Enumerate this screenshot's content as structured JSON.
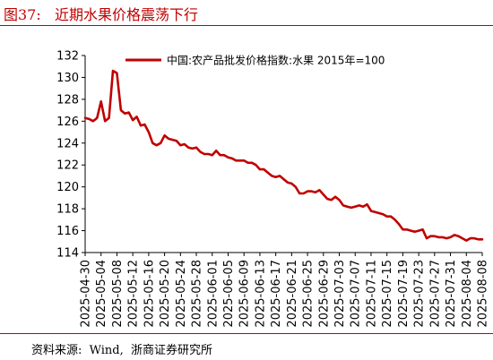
{
  "figure": {
    "title": "图37:   近期水果价格震荡下行",
    "source": "资料来源:  Wind,  浙商证券研究所"
  },
  "colors": {
    "accent": "#c00000",
    "series": "#c00000",
    "axis": "#000000"
  },
  "chart_data": {
    "type": "line",
    "title": "",
    "xlabel": "",
    "ylabel": "",
    "ylim": [
      114,
      132
    ],
    "yticks": [
      114,
      116,
      118,
      120,
      122,
      124,
      126,
      128,
      130,
      132
    ],
    "xlim": [
      "2025-04-30",
      "2025-08-08"
    ],
    "xtick_labels": [
      "2025-04-30",
      "2025-05-04",
      "2025-05-08",
      "2025-05-12",
      "2025-05-16",
      "2025-05-20",
      "2025-05-24",
      "2025-05-28",
      "2025-06-01",
      "2025-06-05",
      "2025-06-09",
      "2025-06-13",
      "2025-06-17",
      "2025-06-21",
      "2025-06-25",
      "2025-06-29",
      "2025-07-03",
      "2025-07-07",
      "2025-07-11",
      "2025-07-15",
      "2025-07-19",
      "2025-07-23",
      "2025-07-27",
      "2025-07-31",
      "2025-08-04",
      "2025-08-08"
    ],
    "grid": false,
    "legend": "top-right",
    "series": [
      {
        "name": "中国:农产品批发价格指数:水果 2015年=100",
        "x": [
          "2025-04-30",
          "2025-05-01",
          "2025-05-02",
          "2025-05-03",
          "2025-05-04",
          "2025-05-05",
          "2025-05-06",
          "2025-05-07",
          "2025-05-08",
          "2025-05-09",
          "2025-05-10",
          "2025-05-11",
          "2025-05-12",
          "2025-05-13",
          "2025-05-14",
          "2025-05-15",
          "2025-05-16",
          "2025-05-17",
          "2025-05-18",
          "2025-05-19",
          "2025-05-20",
          "2025-05-21",
          "2025-05-22",
          "2025-05-23",
          "2025-05-24",
          "2025-05-25",
          "2025-05-26",
          "2025-05-27",
          "2025-05-28",
          "2025-05-29",
          "2025-05-30",
          "2025-05-31",
          "2025-06-01",
          "2025-06-02",
          "2025-06-03",
          "2025-06-04",
          "2025-06-05",
          "2025-06-06",
          "2025-06-07",
          "2025-06-08",
          "2025-06-09",
          "2025-06-10",
          "2025-06-11",
          "2025-06-12",
          "2025-06-13",
          "2025-06-14",
          "2025-06-15",
          "2025-06-16",
          "2025-06-17",
          "2025-06-18",
          "2025-06-19",
          "2025-06-20",
          "2025-06-21",
          "2025-06-22",
          "2025-06-23",
          "2025-06-24",
          "2025-06-25",
          "2025-06-26",
          "2025-06-27",
          "2025-06-28",
          "2025-06-29",
          "2025-06-30",
          "2025-07-01",
          "2025-07-02",
          "2025-07-03",
          "2025-07-04",
          "2025-07-05",
          "2025-07-06",
          "2025-07-07",
          "2025-07-08",
          "2025-07-09",
          "2025-07-10",
          "2025-07-11",
          "2025-07-12",
          "2025-07-13",
          "2025-07-14",
          "2025-07-15",
          "2025-07-16",
          "2025-07-17",
          "2025-07-18",
          "2025-07-19",
          "2025-07-20",
          "2025-07-21",
          "2025-07-22",
          "2025-07-23",
          "2025-07-24",
          "2025-07-25",
          "2025-07-26",
          "2025-07-27",
          "2025-07-28",
          "2025-07-29",
          "2025-07-30",
          "2025-07-31",
          "2025-08-01",
          "2025-08-02",
          "2025-08-03",
          "2025-08-04",
          "2025-08-05",
          "2025-08-06",
          "2025-08-07",
          "2025-08-08"
        ],
        "values": [
          126.3,
          126.2,
          126.0,
          126.3,
          127.8,
          126.0,
          126.3,
          130.6,
          130.4,
          127.0,
          126.7,
          126.8,
          126.1,
          126.4,
          125.6,
          125.7,
          125.0,
          124.0,
          123.8,
          124.0,
          124.7,
          124.4,
          124.3,
          124.2,
          123.8,
          123.9,
          123.6,
          123.5,
          123.6,
          123.2,
          123.0,
          123.0,
          122.9,
          123.3,
          122.9,
          122.9,
          122.7,
          122.6,
          122.4,
          122.4,
          122.4,
          122.2,
          122.2,
          122.0,
          121.6,
          121.6,
          121.3,
          121.0,
          120.9,
          121.0,
          120.7,
          120.4,
          120.3,
          120.0,
          119.4,
          119.4,
          119.6,
          119.6,
          119.5,
          119.7,
          119.3,
          118.9,
          118.8,
          119.1,
          118.8,
          118.3,
          118.2,
          118.1,
          118.2,
          118.3,
          118.2,
          118.4,
          117.8,
          117.7,
          117.6,
          117.5,
          117.3,
          117.3,
          117.0,
          116.6,
          116.1,
          116.1,
          116.0,
          115.9,
          116.0,
          116.1,
          115.3,
          115.5,
          115.5,
          115.4,
          115.4,
          115.3,
          115.4,
          115.6,
          115.5,
          115.3,
          115.1,
          115.3,
          115.3,
          115.2,
          115.2
        ]
      }
    ]
  }
}
